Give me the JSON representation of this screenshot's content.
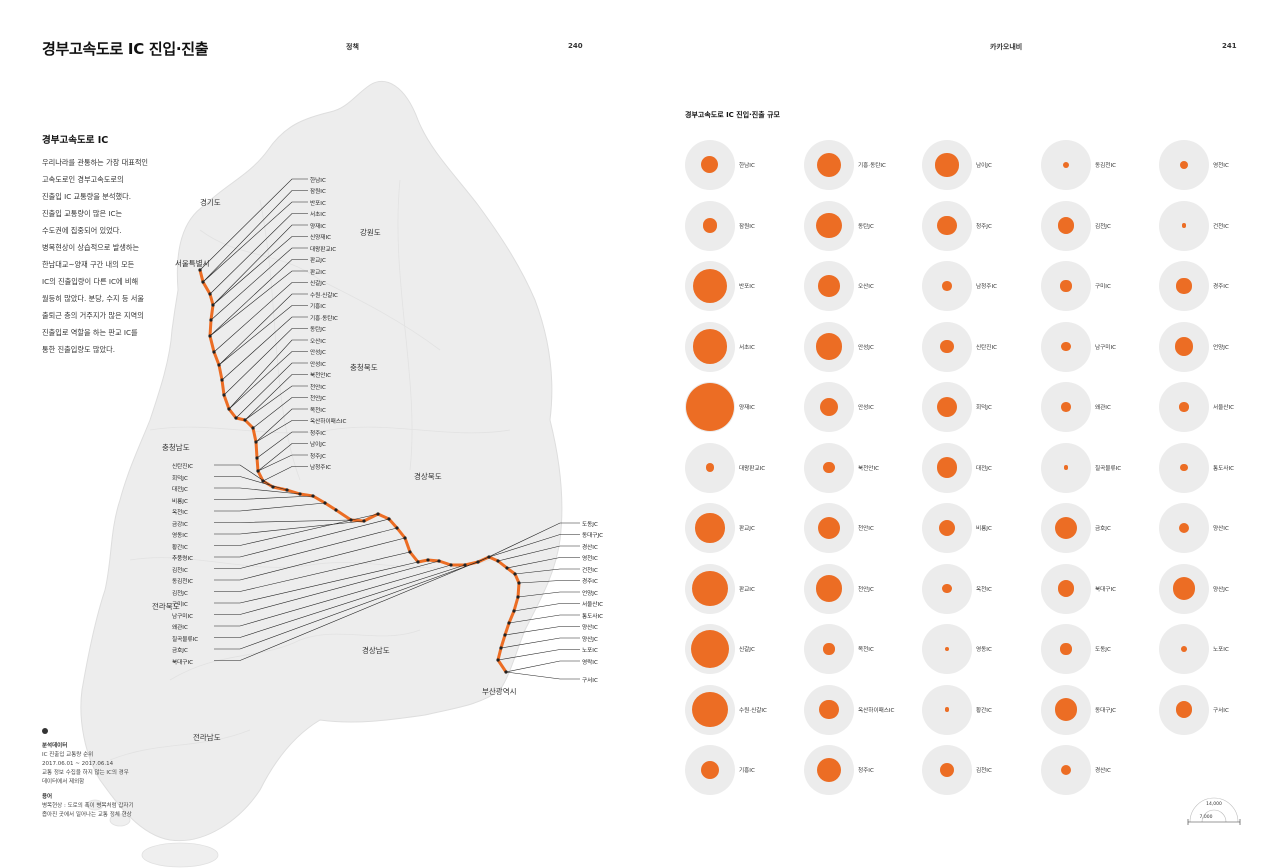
{
  "header": {
    "title": "경부고속도로 IC 진입·진출",
    "left_section": "정책",
    "left_page": "240",
    "right_section": "카카오내비",
    "right_page": "241"
  },
  "intro": {
    "heading": "경부고속도로 IC",
    "lines": [
      "우리나라를 관통하는 가장 대표적인",
      "고속도로인 경부고속도로의",
      "진출입 IC 교통량을 분석했다.",
      "진출입 교통량이 많은 IC는",
      "수도권에 집중되어 있었다.",
      "병목현상이 상습적으로 발생하는",
      "한남대교~양재 구간 내의 모든",
      "IC의 진출입량이 다른 IC에 비해",
      "월등히 많았다. 분당, 수지 등 서울",
      "출퇴근 층의 거주지가 많은 지역의",
      "진출입로 역할을 하는 판교 IC를",
      "통한 진출입량도 많았다."
    ]
  },
  "footnote": {
    "data_heading": "분석데이터",
    "data_lines": [
      "IC 진출입 교통량 순위",
      "2017.06.01 ~ 2017.06.14",
      "교통 정보 수집을 하지 않는 IC의 경우",
      "데이터에서 제외함"
    ],
    "term_heading": "용어",
    "term_lines": [
      "병목현상 : 도로의 폭이 병목처럼 갑자기",
      "좁아진 곳에서 일어나는 교통 정체 현상"
    ]
  },
  "map": {
    "regions": [
      "경기도",
      "서울특별시",
      "강원도",
      "충청북도",
      "충청남도",
      "경상북도",
      "전라북도",
      "경상남도",
      "전라남도",
      "부산광역시"
    ],
    "left_labels": [
      "신탄진IC",
      "회덕JC",
      "대전JC",
      "비룡JC",
      "옥천IC",
      "금강IC",
      "영동IC",
      "황간IC",
      "추풍령IC",
      "김천IC",
      "동김천IC",
      "김천JC",
      "구미IC",
      "남구미IC",
      "왜관IC",
      "칠곡물류IC",
      "금호JC",
      "북대구IC"
    ],
    "right_top_labels": [
      "한남IC",
      "잠원IC",
      "반포IC",
      "서초IC",
      "양재IC",
      "신양재IC",
      "대왕판교IC",
      "판교JC",
      "판교IC",
      "신갈JC",
      "수원·신갈IC",
      "기흥IC",
      "기흥·동탄IC",
      "동탄JC",
      "오산IC",
      "안성JC",
      "안성IC",
      "북천안IC",
      "천안IC",
      "천안JC",
      "목천IC",
      "옥산하이패스IC",
      "청주IC",
      "남이JC",
      "청주JC",
      "남청주IC"
    ],
    "right_bottom_labels": [
      "도동JC",
      "동대구JC",
      "경산IC",
      "영천IC",
      "건천IC",
      "경주IC",
      "언양JC",
      "서울산IC",
      "통도사IC",
      "양산IC",
      "양산JC",
      "노포IC",
      "영락IC",
      "구서IC"
    ]
  },
  "bubbles": {
    "title": "경부고속도로 IC 진입·진출 규모",
    "columns": [
      [
        {
          "name": "한남IC",
          "value": 3200
        },
        {
          "name": "잠원IC",
          "value": 2400
        },
        {
          "name": "반포IC",
          "value": 13500
        },
        {
          "name": "서초IC",
          "value": 13000
        },
        {
          "name": "양재IC",
          "value": 25500
        },
        {
          "name": "대왕판교IC",
          "value": 800
        },
        {
          "name": "판교JC",
          "value": 9400
        },
        {
          "name": "판교IC",
          "value": 14000
        },
        {
          "name": "신갈JC",
          "value": 16000
        },
        {
          "name": "수원·신갈IC",
          "value": 14000
        },
        {
          "name": "기흥IC",
          "value": 3800
        }
      ],
      [
        {
          "name": "기흥·동탄IC",
          "value": 6800
        },
        {
          "name": "동탄JC",
          "value": 7200
        },
        {
          "name": "오산IC",
          "value": 5100
        },
        {
          "name": "안성JC",
          "value": 7800
        },
        {
          "name": "안성IC",
          "value": 3600
        },
        {
          "name": "북천안IC",
          "value": 1400
        },
        {
          "name": "천안IC",
          "value": 5400
        },
        {
          "name": "천안JC",
          "value": 7800
        },
        {
          "name": "목천IC",
          "value": 1400
        },
        {
          "name": "옥산하이패스IC",
          "value": 4300
        },
        {
          "name": "청주IC",
          "value": 6500
        }
      ],
      [
        {
          "name": "남이JC",
          "value": 5900
        },
        {
          "name": "청주JC",
          "value": 4200
        },
        {
          "name": "남청주IC",
          "value": 1000
        },
        {
          "name": "신탄진IC",
          "value": 1900
        },
        {
          "name": "회덕JC",
          "value": 4700
        },
        {
          "name": "대전JC",
          "value": 4700
        },
        {
          "name": "비룡JC",
          "value": 3100
        },
        {
          "name": "옥천IC",
          "value": 900
        },
        {
          "name": "영동IC",
          "value": 230
        },
        {
          "name": "황간IC",
          "value": 230
        },
        {
          "name": "김천IC",
          "value": 2200
        }
      ],
      [
        {
          "name": "동김천IC",
          "value": 450
        },
        {
          "name": "김천JC",
          "value": 3100
        },
        {
          "name": "구미IC",
          "value": 1400
        },
        {
          "name": "남구미IC",
          "value": 1000
        },
        {
          "name": "왜관IC",
          "value": 1000
        },
        {
          "name": "칠곡물류IC",
          "value": 200
        },
        {
          "name": "금호JC",
          "value": 5400
        },
        {
          "name": "북대구IC",
          "value": 3100
        },
        {
          "name": "도동JC",
          "value": 1400
        },
        {
          "name": "동대구JC",
          "value": 5400
        },
        {
          "name": "경산IC",
          "value": 1200
        }
      ],
      [
        {
          "name": "영천IC",
          "value": 750
        },
        {
          "name": "건천IC",
          "value": 230
        },
        {
          "name": "경주IC",
          "value": 2500
        },
        {
          "name": "언양JC",
          "value": 3800
        },
        {
          "name": "서울산IC",
          "value": 900
        },
        {
          "name": "통도사IC",
          "value": 600
        },
        {
          "name": "양산IC",
          "value": 1100
        },
        {
          "name": "양산JC",
          "value": 5800
        },
        {
          "name": "노포IC",
          "value": 380
        },
        {
          "name": "구서IC",
          "value": 2900
        }
      ]
    ],
    "legend": {
      "big": "14,000",
      "small": "7,000"
    },
    "colors": {
      "bubble": "#ec6d24",
      "ring": "#ececec"
    }
  }
}
